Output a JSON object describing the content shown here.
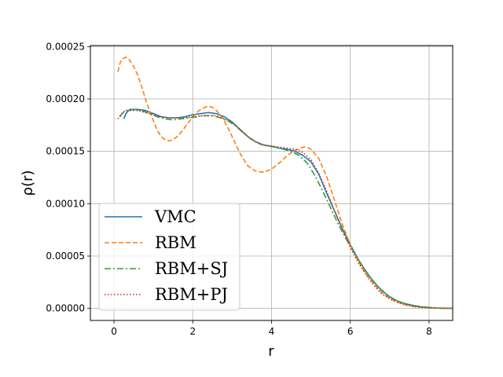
{
  "chart_data": {
    "type": "line",
    "xlabel": "r",
    "ylabel": "ρ(r)",
    "xlim": [
      -0.6,
      8.6
    ],
    "ylim": [
      -1.15e-05,
      0.000251
    ],
    "grid": true,
    "legend_position": "lower-left",
    "x_ticks": [
      {
        "value": 0,
        "label": "0"
      },
      {
        "value": 2,
        "label": "2"
      },
      {
        "value": 4,
        "label": "4"
      },
      {
        "value": 6,
        "label": "6"
      },
      {
        "value": 8,
        "label": "8"
      }
    ],
    "y_ticks": [
      {
        "value": 0,
        "label": "0.00000"
      },
      {
        "value": 5e-05,
        "label": "0.00005"
      },
      {
        "value": 0.0001,
        "label": "0.00010"
      },
      {
        "value": 0.00015,
        "label": "0.00015"
      },
      {
        "value": 0.0002,
        "label": "0.00020"
      },
      {
        "value": 0.00025,
        "label": "0.00025"
      }
    ],
    "series": [
      {
        "name": "VMC",
        "color": "#1f77b4",
        "style": "solid",
        "points": [
          [
            0.25,
            0.000181
          ],
          [
            0.3,
            0.000186
          ],
          [
            0.4,
            0.00019
          ],
          [
            0.6,
            0.00019
          ],
          [
            0.8,
            0.000189
          ],
          [
            1.0,
            0.000186
          ],
          [
            1.2,
            0.000183
          ],
          [
            1.4,
            0.000182
          ],
          [
            1.6,
            0.000182
          ],
          [
            1.8,
            0.000183
          ],
          [
            2.0,
            0.000185
          ],
          [
            2.2,
            0.000186
          ],
          [
            2.4,
            0.000187
          ],
          [
            2.6,
            0.000186
          ],
          [
            2.8,
            0.000183
          ],
          [
            3.0,
            0.000178
          ],
          [
            3.2,
            0.000171
          ],
          [
            3.4,
            0.000164
          ],
          [
            3.6,
            0.000159
          ],
          [
            3.8,
            0.000156
          ],
          [
            4.0,
            0.000155
          ],
          [
            4.2,
            0.000153
          ],
          [
            4.4,
            0.000152
          ],
          [
            4.6,
            0.00015
          ],
          [
            4.8,
            0.000146
          ],
          [
            5.0,
            0.00014
          ],
          [
            5.2,
            0.000128
          ],
          [
            5.4,
            0.00011
          ],
          [
            5.6,
            9.3e-05
          ],
          [
            5.8,
            7.6e-05
          ],
          [
            6.0,
            6.1e-05
          ],
          [
            6.2,
            4.7e-05
          ],
          [
            6.4,
            3.5e-05
          ],
          [
            6.6,
            2.5e-05
          ],
          [
            6.8,
            1.7e-05
          ],
          [
            7.0,
            1.1e-05
          ],
          [
            7.2,
            7e-06
          ],
          [
            7.4,
            4.5e-06
          ],
          [
            7.6,
            2.8e-06
          ],
          [
            7.8,
            1.6e-06
          ],
          [
            8.0,
            9e-07
          ],
          [
            8.2,
            4e-07
          ],
          [
            8.4,
            2e-07
          ],
          [
            8.6,
            1e-07
          ]
        ]
      },
      {
        "name": "RBM",
        "color": "#ff7f0e",
        "style": "dashed",
        "points": [
          [
            0.1,
            0.000226
          ],
          [
            0.15,
            0.000234
          ],
          [
            0.2,
            0.000238
          ],
          [
            0.3,
            0.00024
          ],
          [
            0.4,
            0.000237
          ],
          [
            0.5,
            0.000231
          ],
          [
            0.6,
            0.000223
          ],
          [
            0.7,
            0.000212
          ],
          [
            0.8,
            0.0002
          ],
          [
            0.9,
            0.000189
          ],
          [
            1.0,
            0.000179
          ],
          [
            1.1,
            0.00017
          ],
          [
            1.2,
            0.000164
          ],
          [
            1.3,
            0.000161
          ],
          [
            1.4,
            0.00016
          ],
          [
            1.5,
            0.000161
          ],
          [
            1.6,
            0.000164
          ],
          [
            1.7,
            0.000168
          ],
          [
            1.8,
            0.000173
          ],
          [
            1.9,
            0.000178
          ],
          [
            2.0,
            0.000183
          ],
          [
            2.1,
            0.000187
          ],
          [
            2.2,
            0.00019
          ],
          [
            2.3,
            0.000192
          ],
          [
            2.4,
            0.000193
          ],
          [
            2.5,
            0.000192
          ],
          [
            2.6,
            0.000189
          ],
          [
            2.7,
            0.000185
          ],
          [
            2.8,
            0.000179
          ],
          [
            2.9,
            0.000172
          ],
          [
            3.0,
            0.000164
          ],
          [
            3.2,
            0.000148
          ],
          [
            3.4,
            0.000136
          ],
          [
            3.6,
            0.000131
          ],
          [
            3.8,
            0.00013
          ],
          [
            4.0,
            0.000133
          ],
          [
            4.2,
            0.000139
          ],
          [
            4.4,
            0.000146
          ],
          [
            4.6,
            0.000151
          ],
          [
            4.8,
            0.000154
          ],
          [
            4.9,
            0.000154
          ],
          [
            5.0,
            0.000152
          ],
          [
            5.2,
            0.000143
          ],
          [
            5.4,
            0.000126
          ],
          [
            5.6,
            0.000103
          ],
          [
            5.8,
            8e-05
          ],
          [
            6.0,
            6.1e-05
          ],
          [
            6.2,
            4.5e-05
          ],
          [
            6.4,
            3.3e-05
          ],
          [
            6.6,
            2.3e-05
          ],
          [
            6.8,
            1.5e-05
          ],
          [
            7.0,
            9.5e-06
          ],
          [
            7.2,
            6e-06
          ],
          [
            7.4,
            3.5e-06
          ],
          [
            7.6,
            2e-06
          ],
          [
            7.8,
            1.1e-06
          ],
          [
            8.0,
            5e-07
          ],
          [
            8.3,
            2e-07
          ],
          [
            8.6,
            1e-07
          ]
        ]
      },
      {
        "name": "RBM+SJ",
        "color": "#2ca02c",
        "style": "dashdot",
        "points": [
          [
            0.15,
            0.000183
          ],
          [
            0.2,
            0.000186
          ],
          [
            0.3,
            0.000189
          ],
          [
            0.5,
            0.00019
          ],
          [
            0.7,
            0.000189
          ],
          [
            0.9,
            0.000186
          ],
          [
            1.1,
            0.000183
          ],
          [
            1.3,
            0.000181
          ],
          [
            1.5,
            0.00018
          ],
          [
            1.7,
            0.000181
          ],
          [
            1.9,
            0.000182
          ],
          [
            2.1,
            0.000183
          ],
          [
            2.3,
            0.000184
          ],
          [
            2.5,
            0.000184
          ],
          [
            2.7,
            0.000182
          ],
          [
            2.9,
            0.000179
          ],
          [
            3.1,
            0.000174
          ],
          [
            3.3,
            0.000167
          ],
          [
            3.5,
            0.000161
          ],
          [
            3.7,
            0.000157
          ],
          [
            3.9,
            0.000155
          ],
          [
            4.1,
            0.000154
          ],
          [
            4.3,
            0.000152
          ],
          [
            4.5,
            0.00015
          ],
          [
            4.7,
            0.000146
          ],
          [
            4.9,
            0.000139
          ],
          [
            5.1,
            0.000127
          ],
          [
            5.3,
            0.000112
          ],
          [
            5.5,
            9.6e-05
          ],
          [
            5.7,
            8e-05
          ],
          [
            5.9,
            6.6e-05
          ],
          [
            6.1,
            5.3e-05
          ],
          [
            6.3,
            4.1e-05
          ],
          [
            6.5,
            3e-05
          ],
          [
            6.7,
            2.1e-05
          ],
          [
            6.9,
            1.4e-05
          ],
          [
            7.1,
            9e-06
          ],
          [
            7.3,
            5.5e-06
          ],
          [
            7.5,
            3.3e-06
          ],
          [
            7.7,
            1.9e-06
          ],
          [
            7.9,
            1e-06
          ],
          [
            8.2,
            4e-07
          ],
          [
            8.6,
            1e-07
          ]
        ]
      },
      {
        "name": "RBM+PJ",
        "color": "#d62728",
        "style": "dotted",
        "points": [
          [
            0.1,
            0.000181
          ],
          [
            0.15,
            0.000184
          ],
          [
            0.25,
            0.000188
          ],
          [
            0.4,
            0.000189
          ],
          [
            0.6,
            0.000189
          ],
          [
            0.8,
            0.000187
          ],
          [
            1.0,
            0.000185
          ],
          [
            1.2,
            0.000183
          ],
          [
            1.4,
            0.000182
          ],
          [
            1.6,
            0.000182
          ],
          [
            1.8,
            0.000182
          ],
          [
            2.0,
            0.000183
          ],
          [
            2.2,
            0.000184
          ],
          [
            2.4,
            0.000184
          ],
          [
            2.6,
            0.000184
          ],
          [
            2.8,
            0.000181
          ],
          [
            3.0,
            0.000177
          ],
          [
            3.2,
            0.000171
          ],
          [
            3.4,
            0.000164
          ],
          [
            3.6,
            0.000159
          ],
          [
            3.8,
            0.000156
          ],
          [
            4.0,
            0.000155
          ],
          [
            4.2,
            0.000154
          ],
          [
            4.4,
            0.000153
          ],
          [
            4.6,
            0.000152
          ],
          [
            4.8,
            0.000149
          ],
          [
            5.0,
            0.000142
          ],
          [
            5.2,
            0.000129
          ],
          [
            5.4,
            0.000112
          ],
          [
            5.6,
            9.3e-05
          ],
          [
            5.8,
            7.5e-05
          ],
          [
            6.0,
            5.8e-05
          ],
          [
            6.2,
            4.4e-05
          ],
          [
            6.4,
            3.2e-05
          ],
          [
            6.6,
            2.2e-05
          ],
          [
            6.8,
            1.4e-05
          ],
          [
            7.0,
            9e-06
          ],
          [
            7.2,
            5.5e-06
          ],
          [
            7.4,
            3.2e-06
          ],
          [
            7.6,
            1.8e-06
          ],
          [
            7.8,
            1e-06
          ],
          [
            8.0,
            5e-07
          ],
          [
            8.3,
            2e-07
          ],
          [
            8.6,
            1e-07
          ]
        ]
      }
    ]
  }
}
